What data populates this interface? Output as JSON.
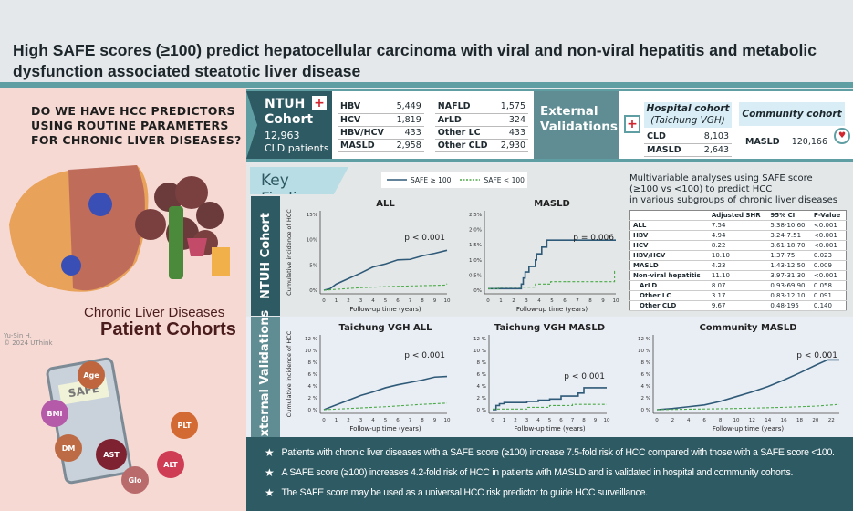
{
  "title": "High SAFE scores (≥100) predict hepatocellular carcinoma with viral and non-viral hepatitis and metabolic dysfunction associated steatotic liver disease",
  "left": {
    "question": [
      "DO WE HAVE HCC PREDICTORS",
      "USING ROUTINE PARAMETERS",
      "FOR CHRONIC LIVER DISEASES?"
    ],
    "label1": "Chronic Liver Diseases",
    "label2": "Patient Cohorts",
    "signature": "Yu-Sin H.",
    "copyright": "© 2024 UThink",
    "calculator": "SAFE",
    "params": [
      {
        "label": "Age",
        "color": "#c0663f"
      },
      {
        "label": "BMI",
        "color": "#b45aa8"
      },
      {
        "label": "DM",
        "color": "#bd6b45"
      },
      {
        "label": "AST",
        "color": "#7e2130"
      },
      {
        "label": "PLT",
        "color": "#d46a33"
      },
      {
        "label": "ALT",
        "color": "#cf3d55"
      },
      {
        "label": "Glo",
        "color": "#b96a6a"
      }
    ]
  },
  "ntuh": {
    "name1": "NTUH",
    "name2": "Cohort",
    "count": "12,963",
    "unit": "CLD patients",
    "rows": [
      [
        "HBV",
        "5,449",
        "NAFLD",
        "1,575"
      ],
      [
        "HCV",
        "1,819",
        "ArLD",
        "324"
      ],
      [
        "HBV/HCV",
        "433",
        "Other LC",
        "433"
      ],
      [
        "MASLD",
        "2,958",
        "Other CLD",
        "2,930"
      ]
    ]
  },
  "external": {
    "label1": "External",
    "label2": "Validations",
    "hospital_title": "Hospital cohort",
    "hospital_sub": "(Taichung VGH)",
    "hospital_rows": [
      [
        "CLD",
        "8,103"
      ],
      [
        "MASLD",
        "2,643"
      ]
    ],
    "community_title": "Community cohort",
    "community_rows": [
      [
        "MASLD",
        "120,166"
      ]
    ]
  },
  "key_findings": "Key Findings",
  "legend": {
    "high": "SAFE ≥ 100",
    "low": "SAFE < 100",
    "high_color": "#2f5a78",
    "low_color": "#4caa48"
  },
  "ntuh_label": "NTUH Cohort",
  "ev_label": "External Validations",
  "chart_data": [
    {
      "type": "line",
      "title": "ALL",
      "xlabel": "Follow-up time (years)",
      "ylabel": "Cumulative incidence of HCC",
      "xlim": [
        0,
        10
      ],
      "xticks": [
        0,
        1,
        2,
        3,
        4,
        5,
        6,
        7,
        8,
        9,
        10
      ],
      "ylim": [
        0,
        15
      ],
      "yticks": [
        "0%",
        "5%",
        "10%",
        "15%"
      ],
      "ytickvals": [
        0,
        5,
        10,
        15
      ],
      "pvalue": "p < 0.001",
      "series": [
        {
          "name": "SAFE ≥ 100",
          "x": [
            0,
            0.5,
            1,
            2,
            3,
            4,
            5,
            6,
            7,
            8,
            9,
            10
          ],
          "y": [
            0,
            0.3,
            1.2,
            2.3,
            3.4,
            4.6,
            5.2,
            6,
            6.1,
            6.8,
            7.3,
            7.9
          ]
        },
        {
          "name": "SAFE < 100",
          "x": [
            0,
            3,
            5,
            8,
            9.9,
            10
          ],
          "y": [
            0,
            0.5,
            0.7,
            0.9,
            1.0,
            1.3
          ]
        }
      ]
    },
    {
      "type": "line",
      "step": true,
      "title": "MASLD",
      "xlabel": "Follow-up time (years)",
      "ylabel": "",
      "xlim": [
        0,
        10
      ],
      "xticks": [
        0,
        1,
        2,
        3,
        4,
        5,
        6,
        7,
        8,
        9,
        10
      ],
      "ylim": [
        0,
        2.5
      ],
      "yticks": [
        "0%",
        "0.5%",
        "1.0%",
        "1.5%",
        "2.0%",
        "2.5%"
      ],
      "ytickvals": [
        0,
        0.5,
        1,
        1.5,
        2,
        2.5
      ],
      "pvalue": "p = 0.006",
      "series": [
        {
          "name": "SAFE ≥ 100",
          "x": [
            0,
            2.6,
            2.75,
            2.9,
            3.2,
            3.7,
            3.8,
            4.2,
            4.6,
            10
          ],
          "y": [
            0.05,
            0.2,
            0.4,
            0.6,
            0.78,
            1.0,
            1.2,
            1.42,
            1.65,
            1.65
          ]
        },
        {
          "name": "SAFE < 100",
          "x": [
            0,
            0.8,
            3.5,
            3.7,
            4.9,
            9.9,
            10
          ],
          "y": [
            0.05,
            0.1,
            0.1,
            0.2,
            0.28,
            0.62,
            0.62
          ]
        }
      ]
    },
    {
      "type": "line",
      "title": "Taichung VGH ALL",
      "xlabel": "Follow-up time (years)",
      "ylabel": "Cumulative incidence of HCC",
      "xlim": [
        0,
        10
      ],
      "xticks": [
        0,
        1,
        2,
        3,
        4,
        5,
        6,
        7,
        8,
        9,
        10
      ],
      "ylim": [
        0,
        12
      ],
      "yticks": [
        "0 %",
        "2 %",
        "4 %",
        "6 %",
        "8 %",
        "10 %",
        "12 %"
      ],
      "ytickvals": [
        0,
        2,
        4,
        6,
        8,
        10,
        12
      ],
      "pvalue": "p < 0.001",
      "series": [
        {
          "name": "SAFE ≥ 100",
          "x": [
            0,
            1,
            2,
            3,
            4,
            5,
            6,
            7,
            8,
            9,
            10
          ],
          "y": [
            0,
            0.8,
            1.6,
            2.4,
            3.0,
            3.7,
            4.2,
            4.6,
            5.0,
            5.5,
            5.6
          ]
        },
        {
          "name": "SAFE < 100",
          "x": [
            0,
            5,
            8,
            10
          ],
          "y": [
            0,
            0.5,
            0.9,
            1.1
          ]
        }
      ]
    },
    {
      "type": "line",
      "step": true,
      "title": "Taichung VGH MASLD",
      "xlabel": "Follow-up time (years)",
      "ylabel": "",
      "xlim": [
        0,
        10
      ],
      "xticks": [
        0,
        1,
        2,
        3,
        4,
        5,
        6,
        7,
        8,
        9,
        10
      ],
      "ylim": [
        0,
        12
      ],
      "yticks": [
        "0 %",
        "2 %",
        "4 %",
        "6 %",
        "8 %",
        "10 %",
        "12 %"
      ],
      "ytickvals": [
        0,
        2,
        4,
        6,
        8,
        10,
        12
      ],
      "pvalue": "p < 0.001",
      "series": [
        {
          "name": "SAFE ≥ 100",
          "x": [
            0,
            0.3,
            0.6,
            1,
            3,
            4,
            5,
            6,
            7.5,
            8,
            10
          ],
          "y": [
            0,
            0.7,
            1.0,
            1.2,
            1.4,
            1.6,
            1.8,
            2.3,
            2.8,
            3.7,
            3.7
          ]
        },
        {
          "name": "SAFE < 100",
          "x": [
            0,
            3,
            5,
            7,
            10
          ],
          "y": [
            0.1,
            0.4,
            0.7,
            0.9,
            0.9
          ]
        }
      ]
    },
    {
      "type": "line",
      "title": "Community MASLD",
      "xlabel": "Follow-up time (years)",
      "ylabel": "",
      "xlim": [
        0,
        23
      ],
      "xticks": [
        0,
        2,
        4,
        6,
        8,
        10,
        12,
        14,
        16,
        18,
        20,
        22
      ],
      "ylim": [
        0,
        12
      ],
      "yticks": [
        "0 %",
        "2 %",
        "4 %",
        "6 %",
        "8 %",
        "10 %",
        "12 %"
      ],
      "ytickvals": [
        0,
        2,
        4,
        6,
        8,
        10,
        12
      ],
      "pvalue": "p < 0.001",
      "series": [
        {
          "name": "SAFE ≥ 100",
          "x": [
            0,
            2,
            4,
            6,
            8,
            10,
            12,
            14,
            16,
            18,
            20,
            21.5,
            23
          ],
          "y": [
            0,
            0.2,
            0.5,
            0.8,
            1.4,
            2.2,
            3.0,
            3.9,
            5.0,
            6.2,
            7.5,
            8.4,
            8.4
          ]
        },
        {
          "name": "SAFE < 100",
          "x": [
            0,
            10,
            16,
            20,
            23
          ],
          "y": [
            0,
            0.2,
            0.4,
            0.6,
            0.9
          ]
        }
      ]
    }
  ],
  "multivariable": {
    "title": [
      "Multivariable analyses using SAFE score",
      "(≥100 vs <100) to predict HCC",
      "in various subgroups of chronic liver diseases"
    ],
    "headers": [
      "",
      "Adjusted SHR",
      "95% CI",
      "P-Value"
    ],
    "rows": [
      [
        "ALL",
        "7.54",
        "5.38-10.60",
        "<0.001"
      ],
      [
        "HBV",
        "4.94",
        "3.24-7.51",
        "<0.001"
      ],
      [
        "HCV",
        "8.22",
        "3.61-18.70",
        "<0.001"
      ],
      [
        "HBV/HCV",
        "10.10",
        "1.37-75",
        "0.023"
      ],
      [
        "MASLD",
        "4.23",
        "1.43-12.50",
        "0.009"
      ],
      [
        "Non-viral hepatitis",
        "11.10",
        "3.97-31.30",
        "<0.001"
      ],
      [
        "ArLD",
        "8.07",
        "0.93-69.90",
        "0.058"
      ],
      [
        "Other LC",
        "3.17",
        "0.83-12.10",
        "0.091"
      ],
      [
        "Other CLD",
        "9.67",
        "0.48-195",
        "0.140"
      ]
    ]
  },
  "conclusions": [
    "Patients with chronic liver diseases with a SAFE score (≥100) increase 7.5-fold risk of HCC compared with those with a SAFE score <100.",
    "A SAFE score (≥100) increases 4.2-fold risk of HCC in patients with MASLD and is validated in hospital and community cohorts.",
    "The SAFE score may be used as a universal HCC risk predictor to guide HCC surveillance."
  ]
}
